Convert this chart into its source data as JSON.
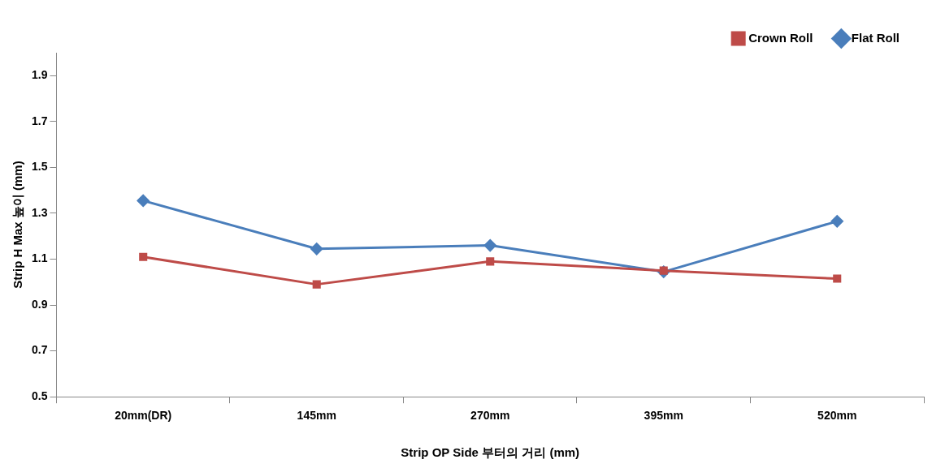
{
  "chart_data": {
    "type": "line",
    "xlabel": "Strip OP Side 부터의 거리 (mm)",
    "ylabel": "Strip H Max 높이 (mm)",
    "categories": [
      "20mm(DR)",
      "145mm",
      "270mm",
      "395mm",
      "520mm"
    ],
    "series": [
      {
        "name": "Flat Roll",
        "color": "#4a7ebb",
        "marker": "diamond",
        "values": [
          1.355,
          1.145,
          1.16,
          1.045,
          1.265
        ]
      },
      {
        "name": "Crown Roll",
        "color": "#be4b48",
        "marker": "square",
        "values": [
          1.11,
          0.99,
          1.09,
          1.05,
          1.015
        ]
      }
    ],
    "ylim": [
      0.5,
      2.0
    ],
    "yticks": [
      0.5,
      0.7,
      0.9,
      1.1,
      1.3,
      1.5,
      1.7,
      1.9
    ],
    "grid": false,
    "legend": "top right",
    "line_style": "solid"
  }
}
